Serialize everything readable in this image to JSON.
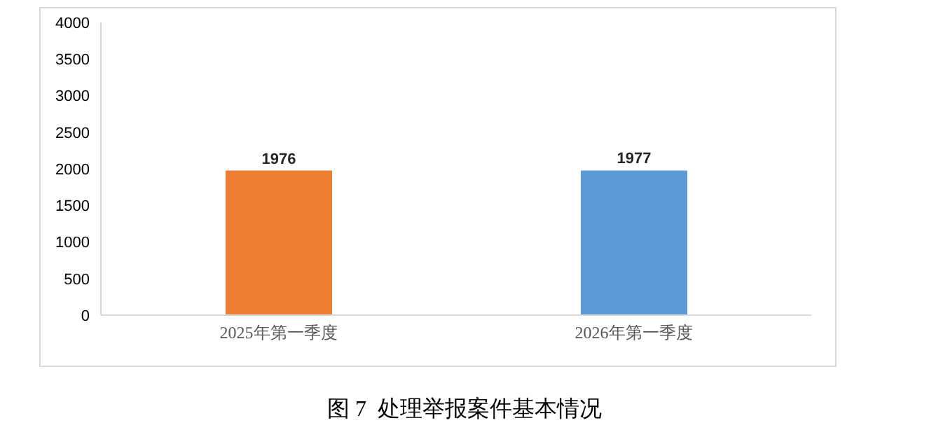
{
  "chart_data": {
    "type": "bar",
    "title": "图 7  处理举报案件基本情况",
    "categories": [
      "2025年第一季度",
      "2026年第一季度"
    ],
    "values": [
      1976,
      1977
    ],
    "colors": [
      "#ed7d31",
      "#5b9bd5"
    ],
    "ylim": [
      0,
      4000
    ],
    "yticks": [
      0,
      500,
      1000,
      1500,
      2000,
      2500,
      3000,
      3500,
      4000
    ],
    "grid": false,
    "data_labels": true
  }
}
